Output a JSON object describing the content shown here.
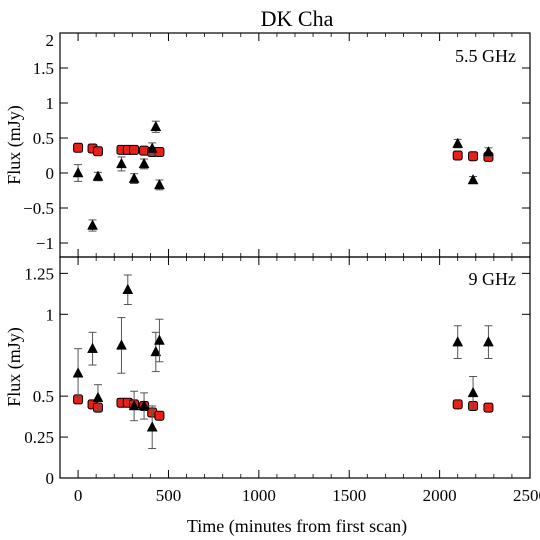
{
  "chart_data": [
    {
      "type": "scatter",
      "title": "DK Cha",
      "annotation": "5.5 GHz",
      "ylabel": "Flux (mJy)",
      "xlim": [
        -100,
        2500
      ],
      "ylim": [
        -1.2,
        2.0
      ],
      "yticks": [
        -1,
        -0.5,
        0,
        0.5,
        1,
        1.5,
        2
      ],
      "ytick_labels": [
        "−1",
        "−0.5",
        "0",
        "0.5",
        "1",
        "1.5",
        "2"
      ],
      "series": [
        {
          "marker": "square",
          "color": "#e8201a",
          "points": [
            {
              "x": 0,
              "y": 0.36,
              "err": 0.04
            },
            {
              "x": 80,
              "y": 0.35,
              "err": 0.04
            },
            {
              "x": 110,
              "y": 0.31,
              "err": 0.04
            },
            {
              "x": 240,
              "y": 0.33,
              "err": 0.04
            },
            {
              "x": 275,
              "y": 0.33,
              "err": 0.04
            },
            {
              "x": 310,
              "y": 0.33,
              "err": 0.04
            },
            {
              "x": 365,
              "y": 0.32,
              "err": 0.04
            },
            {
              "x": 410,
              "y": 0.3,
              "err": 0.04
            },
            {
              "x": 450,
              "y": 0.3,
              "err": 0.04
            },
            {
              "x": 2100,
              "y": 0.25,
              "err": 0.04
            },
            {
              "x": 2185,
              "y": 0.24,
              "err": 0.04
            },
            {
              "x": 2270,
              "y": 0.23,
              "err": 0.04
            }
          ]
        },
        {
          "marker": "triangle",
          "color": "#000000",
          "points": [
            {
              "x": 0,
              "y": 0.0,
              "err": 0.12
            },
            {
              "x": 80,
              "y": -0.75,
              "err": 0.08
            },
            {
              "x": 110,
              "y": -0.05,
              "err": 0.06
            },
            {
              "x": 240,
              "y": 0.13,
              "err": 0.1
            },
            {
              "x": 310,
              "y": -0.08,
              "err": 0.07
            },
            {
              "x": 365,
              "y": 0.13,
              "err": 0.07
            },
            {
              "x": 410,
              "y": 0.35,
              "err": 0.08
            },
            {
              "x": 430,
              "y": 0.66,
              "err": 0.08
            },
            {
              "x": 450,
              "y": -0.17,
              "err": 0.07
            },
            {
              "x": 2100,
              "y": 0.42,
              "err": 0.06
            },
            {
              "x": 2185,
              "y": -0.1,
              "err": 0.05
            },
            {
              "x": 2270,
              "y": 0.3,
              "err": 0.06
            }
          ]
        }
      ]
    },
    {
      "type": "scatter",
      "annotation": "9 GHz",
      "ylabel": "Flux (mJy)",
      "xlabel": "Time (minutes from first scan)",
      "xlim": [
        -100,
        2500
      ],
      "ylim": [
        0,
        1.35
      ],
      "xticks": [
        0,
        500,
        1000,
        1500,
        2000,
        2500
      ],
      "xtick_labels": [
        "0",
        "500",
        "1000",
        "1500",
        "2000",
        "2500"
      ],
      "yticks": [
        0,
        0.25,
        0.5,
        1,
        1.25
      ],
      "ytick_labels": [
        "0",
        "0.25",
        "0.5",
        "1",
        "1.25"
      ],
      "series": [
        {
          "marker": "square",
          "color": "#e8201a",
          "points": [
            {
              "x": 0,
              "y": 0.48,
              "err": 0.015
            },
            {
              "x": 80,
              "y": 0.45,
              "err": 0.015
            },
            {
              "x": 110,
              "y": 0.43,
              "err": 0.015
            },
            {
              "x": 240,
              "y": 0.46,
              "err": 0.015
            },
            {
              "x": 275,
              "y": 0.46,
              "err": 0.015
            },
            {
              "x": 310,
              "y": 0.45,
              "err": 0.015
            },
            {
              "x": 365,
              "y": 0.44,
              "err": 0.015
            },
            {
              "x": 410,
              "y": 0.4,
              "err": 0.015
            },
            {
              "x": 450,
              "y": 0.38,
              "err": 0.015
            },
            {
              "x": 2100,
              "y": 0.45,
              "err": 0.015
            },
            {
              "x": 2185,
              "y": 0.44,
              "err": 0.015
            },
            {
              "x": 2270,
              "y": 0.43,
              "err": 0.015
            }
          ]
        },
        {
          "marker": "triangle",
          "color": "#000000",
          "points": [
            {
              "x": 0,
              "y": 0.64,
              "err": 0.15
            },
            {
              "x": 80,
              "y": 0.79,
              "err": 0.1
            },
            {
              "x": 110,
              "y": 0.49,
              "err": 0.08
            },
            {
              "x": 240,
              "y": 0.81,
              "err": 0.17
            },
            {
              "x": 275,
              "y": 1.15,
              "err": 0.09
            },
            {
              "x": 310,
              "y": 0.44,
              "err": 0.09
            },
            {
              "x": 365,
              "y": 0.44,
              "err": 0.08
            },
            {
              "x": 410,
              "y": 0.31,
              "err": 0.13
            },
            {
              "x": 430,
              "y": 0.77,
              "err": 0.12
            },
            {
              "x": 450,
              "y": 0.84,
              "err": 0.13
            },
            {
              "x": 2100,
              "y": 0.83,
              "err": 0.1
            },
            {
              "x": 2185,
              "y": 0.52,
              "err": 0.1
            },
            {
              "x": 2270,
              "y": 0.83,
              "err": 0.1
            }
          ]
        }
      ]
    }
  ]
}
